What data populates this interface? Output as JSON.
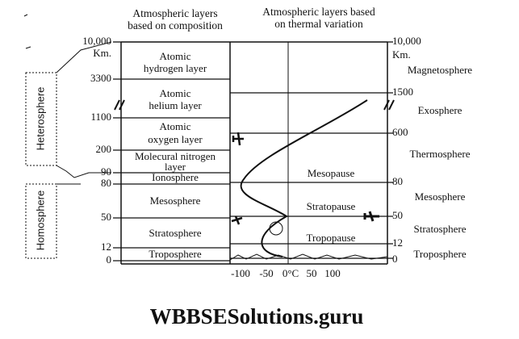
{
  "header": {
    "composition_title": [
      "Atmospheric layers",
      "based on composition"
    ],
    "thermal_title": [
      "Atmospheric layers based",
      "on thermal variation"
    ]
  },
  "left_axis": [
    "10,000",
    "Km.",
    "3300",
    "1100",
    "200",
    "90",
    "80",
    "50",
    "12",
    "0"
  ],
  "right_axis": [
    "10,000",
    "Km.",
    "1500",
    "600",
    "80",
    "50",
    "12",
    "0"
  ],
  "composition_layers": [
    [
      "Atomic",
      "hydrogen layer"
    ],
    [
      "Atomic",
      "helium layer"
    ],
    [
      "Atomic",
      "oxygen layer"
    ],
    [
      "Molecural nitrogen",
      "layer"
    ],
    [
      "Ionosphere"
    ],
    [
      "Mesosphere"
    ],
    [
      "Stratosphere"
    ],
    [
      "Troposphere"
    ]
  ],
  "boundaries": [
    "Mesopause",
    "Stratopause",
    "Tropopause"
  ],
  "thermal_layers": [
    "Magnetosphere",
    "Exosphere",
    "Thermosphere",
    "Mesosphere",
    "Stratosphere",
    "Troposphere"
  ],
  "temperature_scale": [
    "-100",
    "-50",
    "0°C",
    "50",
    "100"
  ],
  "side_labels": [
    "Heterosphere",
    "Homosphere"
  ],
  "footer": "WBBSESolutions.guru"
}
